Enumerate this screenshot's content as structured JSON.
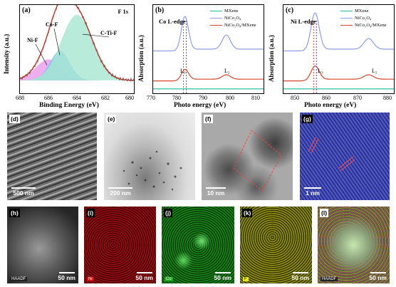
{
  "panel_a": {
    "label": "(a)",
    "title": "F 1s",
    "ylabel": "Intensity (a.u.)",
    "xlabel": "Binding Energy (eV)",
    "peaks": [
      "Ni-F",
      "Co-F",
      "C-Ti-F"
    ],
    "colors": {
      "raw": "#606060",
      "fit": "#c0392b",
      "ctif": "#a8e6d2",
      "cof": "#7ec8f0",
      "nif": "#e89be8"
    }
  },
  "panel_b": {
    "label": "(b)",
    "title": "Co  L-edge",
    "ylabel": "Absorption (a.u.)",
    "xlabel": "Photo energy (eV)",
    "edge_labels": [
      "L₃",
      "L₂"
    ]
  },
  "panel_c": {
    "label": "(c)",
    "title": "Ni  L-edge",
    "ylabel": "Absorption (a.u.)",
    "xlabel": "Photo energy (eV)",
    "edge_labels": [
      "L₃",
      "L₂"
    ]
  },
  "legend": [
    {
      "name": "MXene",
      "color": "#1abc9c"
    },
    {
      "name": "NiCo₂O₄",
      "color": "#8c9ee8"
    },
    {
      "name": "NiCo₂O₄/MXene",
      "color": "#d9472b"
    }
  ],
  "chart_data": [
    {
      "type": "area",
      "title": "F 1s",
      "xlabel": "Binding Energy (eV)",
      "ylabel": "Intensity (a.u.)",
      "xlim": [
        688,
        680
      ],
      "x_ticks": [
        688,
        686,
        684,
        682,
        680
      ],
      "series": [
        {
          "name": "C-Ti-F",
          "center": 684.0,
          "height": 0.78,
          "width": 1.1
        },
        {
          "name": "Co-F",
          "center": 685.2,
          "height": 0.35,
          "width": 0.7
        },
        {
          "name": "Ni-F",
          "center": 686.0,
          "height": 0.25,
          "width": 0.9
        }
      ],
      "legend": "none"
    },
    {
      "type": "line",
      "title": "Co  L-edge",
      "xlabel": "Photo energy (eV)",
      "ylabel": "Absorption (a.u.)",
      "xlim": [
        770,
        810
      ],
      "x_ticks": [
        770,
        780,
        790,
        800,
        810
      ],
      "peaks": {
        "L3": 781.5,
        "L2": 796.5
      },
      "series": [
        {
          "name": "MXene",
          "offset": 0.05,
          "L3_height": 0.0,
          "L2_height": 0.0
        },
        {
          "name": "NiCo₂O₄",
          "offset": 0.48,
          "L3_height": 0.38,
          "L2_height": 0.16
        },
        {
          "name": "NiCo₂O₄/MXene",
          "offset": 0.14,
          "L3_height": 0.12,
          "L2_height": 0.05
        }
      ],
      "legend": "top-right"
    },
    {
      "type": "line",
      "title": "Ni  L-edge",
      "xlabel": "Photo energy (eV)",
      "ylabel": "Absorption (a.u.)",
      "xlim": [
        845,
        880
      ],
      "x_ticks": [
        850,
        860,
        870,
        880
      ],
      "peaks": {
        "L3": 855.0,
        "L2": 872.0
      },
      "series": [
        {
          "name": "MXene",
          "offset": 0.05,
          "L3_height": 0.0,
          "L2_height": 0.0
        },
        {
          "name": "NiCo₂O₄",
          "offset": 0.48,
          "L3_height": 0.42,
          "L2_height": 0.12
        },
        {
          "name": "NiCo₂O₄/MXene",
          "offset": 0.14,
          "L3_height": 0.16,
          "L2_height": 0.05
        }
      ],
      "legend": "top-right"
    }
  ],
  "images_row1": [
    {
      "label": "(d)",
      "scale": "500 nm"
    },
    {
      "label": "(e)",
      "scale": "200 nm"
    },
    {
      "label": "(f)",
      "scale": "10 nm"
    },
    {
      "label": "(g)",
      "scale": "1 nm"
    }
  ],
  "images_row2": [
    {
      "label": "(h)",
      "scale": "50 nm",
      "tag": "HAADF"
    },
    {
      "label": "(i)",
      "scale": "50 nm",
      "tag": "Ni"
    },
    {
      "label": "(j)",
      "scale": "50 nm",
      "tag": "Co"
    },
    {
      "label": "(k)",
      "scale": "50 nm",
      "tag": "F"
    },
    {
      "label": "(l)",
      "scale": "50 nm",
      "tag": "HAADF"
    }
  ]
}
